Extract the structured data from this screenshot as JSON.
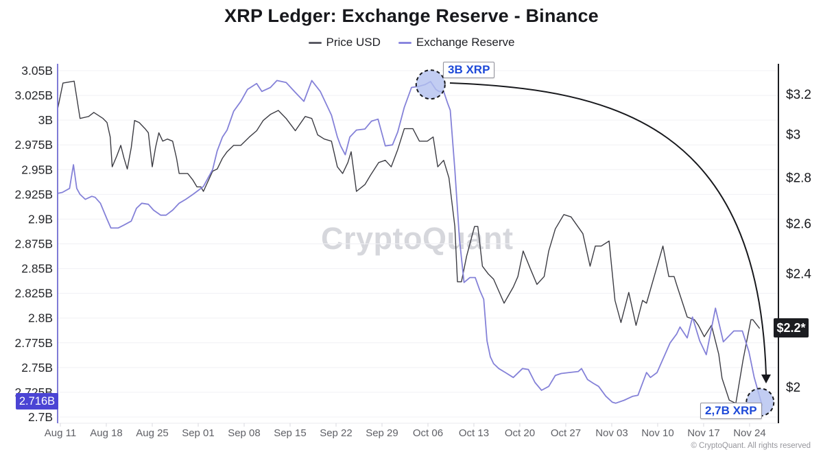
{
  "page": {
    "title": "XRP Ledger: Exchange Reserve - Binance",
    "watermark": "CryptoQuant",
    "copyright": "© CryptoQuant. All rights reserved"
  },
  "legend": [
    {
      "label": "Price USD",
      "color": "#5b5b64"
    },
    {
      "label": "Exchange Reserve",
      "color": "#8a86de"
    }
  ],
  "chart_data": {
    "type": "line",
    "title": "XRP Ledger: Exchange Reserve - Binance",
    "grid": "horizontal",
    "legend_position": "top",
    "x_axis": {
      "unit": "date (2025), day 0 = Aug 11",
      "ticks": [
        {
          "day": 0,
          "label": "Aug 11"
        },
        {
          "day": 7,
          "label": "Aug 18"
        },
        {
          "day": 14,
          "label": "Aug 25"
        },
        {
          "day": 21,
          "label": "Sep 01"
        },
        {
          "day": 28,
          "label": "Sep 08"
        },
        {
          "day": 35,
          "label": "Sep 15"
        },
        {
          "day": 42,
          "label": "Sep 22"
        },
        {
          "day": 49,
          "label": "Sep 29"
        },
        {
          "day": 56,
          "label": "Oct 06"
        },
        {
          "day": 63,
          "label": "Oct 13"
        },
        {
          "day": 70,
          "label": "Oct 20"
        },
        {
          "day": 77,
          "label": "Oct 27"
        },
        {
          "day": 84,
          "label": "Nov 03"
        },
        {
          "day": 91,
          "label": "Nov 10"
        },
        {
          "day": 98,
          "label": "Nov 17"
        },
        {
          "day": 105,
          "label": "Nov 24"
        }
      ]
    },
    "left_axis": {
      "name": "Exchange Reserve",
      "unit": "billion XRP",
      "scale": "linear",
      "range": [
        2.7,
        3.05
      ],
      "axis_color": "#7e7ad6",
      "ticks": [
        {
          "value": 3.05,
          "label": "3.05B"
        },
        {
          "value": 3.025,
          "label": "3.025B"
        },
        {
          "value": 3.0,
          "label": "3B"
        },
        {
          "value": 2.975,
          "label": "2.975B"
        },
        {
          "value": 2.95,
          "label": "2.95B"
        },
        {
          "value": 2.925,
          "label": "2.925B"
        },
        {
          "value": 2.9,
          "label": "2.9B"
        },
        {
          "value": 2.875,
          "label": "2.875B"
        },
        {
          "value": 2.85,
          "label": "2.85B"
        },
        {
          "value": 2.825,
          "label": "2.825B"
        },
        {
          "value": 2.8,
          "label": "2.8B"
        },
        {
          "value": 2.775,
          "label": "2.775B"
        },
        {
          "value": 2.75,
          "label": "2.75B"
        },
        {
          "value": 2.725,
          "label": "2.725B"
        },
        {
          "value": 2.7,
          "label": "2.7B"
        }
      ],
      "highlight": {
        "value": 2.716,
        "label": "2.716B",
        "color": "#4b44d4"
      }
    },
    "right_axis": {
      "name": "Price USD",
      "unit": "USD",
      "scale": "log",
      "axis_color": "#1a1b1f",
      "ticks": [
        {
          "value": 3.2,
          "label": "$3.2"
        },
        {
          "value": 3.0,
          "label": "$3"
        },
        {
          "value": 2.8,
          "label": "$2.8"
        },
        {
          "value": 2.6,
          "label": "$2.6"
        },
        {
          "value": 2.4,
          "label": "$2.4"
        },
        {
          "value": 2.0,
          "label": "$2"
        }
      ],
      "highlight": {
        "value": 2.2,
        "label": "$2.2*",
        "color": "#1b1c20"
      }
    },
    "series": [
      {
        "name": "Price USD",
        "axis": "right",
        "color": "#3b3b42",
        "width": 1.4,
        "points": [
          [
            -0.4,
            3.13
          ],
          [
            0.4,
            3.26
          ],
          [
            2.1,
            3.27
          ],
          [
            3.0,
            3.08
          ],
          [
            4.3,
            3.09
          ],
          [
            5.1,
            3.11
          ],
          [
            6.5,
            3.08
          ],
          [
            7.1,
            3.06
          ],
          [
            7.6,
            2.99
          ],
          [
            7.9,
            2.85
          ],
          [
            8.6,
            2.9
          ],
          [
            9.2,
            2.95
          ],
          [
            9.7,
            2.89
          ],
          [
            10.2,
            2.84
          ],
          [
            10.8,
            2.94
          ],
          [
            11.3,
            3.07
          ],
          [
            12.0,
            3.06
          ],
          [
            12.9,
            3.03
          ],
          [
            13.4,
            3.01
          ],
          [
            14.0,
            2.85
          ],
          [
            14.5,
            2.94
          ],
          [
            15.0,
            3.01
          ],
          [
            15.6,
            2.97
          ],
          [
            16.3,
            2.98
          ],
          [
            17.1,
            2.97
          ],
          [
            17.7,
            2.89
          ],
          [
            18.1,
            2.82
          ],
          [
            18.8,
            2.82
          ],
          [
            19.4,
            2.82
          ],
          [
            20.2,
            2.79
          ],
          [
            20.8,
            2.76
          ],
          [
            21.4,
            2.76
          ],
          [
            21.8,
            2.74
          ],
          [
            23.2,
            2.83
          ],
          [
            23.9,
            2.84
          ],
          [
            24.7,
            2.89
          ],
          [
            25.4,
            2.92
          ],
          [
            26.4,
            2.95
          ],
          [
            27.5,
            2.95
          ],
          [
            28.8,
            2.99
          ],
          [
            29.9,
            3.02
          ],
          [
            30.9,
            3.07
          ],
          [
            32.0,
            3.1
          ],
          [
            33.2,
            3.12
          ],
          [
            34.4,
            3.08
          ],
          [
            35.8,
            3.02
          ],
          [
            37.3,
            3.09
          ],
          [
            38.3,
            3.08
          ],
          [
            39.2,
            3.0
          ],
          [
            40.2,
            2.98
          ],
          [
            41.3,
            2.97
          ],
          [
            42.2,
            2.85
          ],
          [
            43.0,
            2.82
          ],
          [
            43.8,
            2.87
          ],
          [
            44.3,
            2.92
          ],
          [
            45.1,
            2.74
          ],
          [
            46.4,
            2.77
          ],
          [
            47.2,
            2.81
          ],
          [
            48.5,
            2.87
          ],
          [
            49.5,
            2.88
          ],
          [
            50.4,
            2.85
          ],
          [
            51.4,
            2.93
          ],
          [
            52.4,
            3.03
          ],
          [
            53.7,
            3.03
          ],
          [
            54.7,
            2.97
          ],
          [
            55.9,
            2.97
          ],
          [
            56.8,
            2.99
          ],
          [
            57.5,
            2.85
          ],
          [
            58.4,
            2.88
          ],
          [
            59.2,
            2.8
          ],
          [
            60.1,
            2.59
          ],
          [
            60.5,
            2.37
          ],
          [
            61.1,
            2.37
          ],
          [
            61.9,
            2.47
          ],
          [
            63.1,
            2.59
          ],
          [
            63.6,
            2.59
          ],
          [
            64.3,
            2.43
          ],
          [
            65.2,
            2.4
          ],
          [
            66.0,
            2.38
          ],
          [
            67.6,
            2.29
          ],
          [
            69.0,
            2.35
          ],
          [
            69.7,
            2.39
          ],
          [
            70.5,
            2.49
          ],
          [
            71.6,
            2.42
          ],
          [
            72.6,
            2.36
          ],
          [
            73.7,
            2.39
          ],
          [
            74.4,
            2.49
          ],
          [
            75.4,
            2.58
          ],
          [
            76.7,
            2.64
          ],
          [
            77.8,
            2.63
          ],
          [
            79.6,
            2.56
          ],
          [
            80.7,
            2.43
          ],
          [
            81.5,
            2.51
          ],
          [
            82.4,
            2.51
          ],
          [
            83.6,
            2.53
          ],
          [
            84.5,
            2.3
          ],
          [
            85.4,
            2.22
          ],
          [
            86.6,
            2.33
          ],
          [
            87.7,
            2.21
          ],
          [
            88.7,
            2.3
          ],
          [
            89.3,
            2.29
          ],
          [
            91.8,
            2.51
          ],
          [
            92.7,
            2.39
          ],
          [
            93.5,
            2.39
          ],
          [
            94.0,
            2.35
          ],
          [
            95.5,
            2.24
          ],
          [
            96.6,
            2.23
          ],
          [
            97.2,
            2.21
          ],
          [
            98.1,
            2.17
          ],
          [
            99.2,
            2.21
          ],
          [
            100.3,
            2.11
          ],
          [
            100.8,
            2.03
          ],
          [
            101.9,
            1.96
          ],
          [
            102.9,
            1.95
          ],
          [
            104.0,
            2.09
          ],
          [
            105.2,
            2.23
          ],
          [
            105.5,
            2.23
          ],
          [
            106.5,
            2.2
          ]
        ]
      },
      {
        "name": "Exchange Reserve",
        "axis": "left",
        "color": "#8481d8",
        "width": 1.8,
        "points": [
          [
            -0.4,
            2.926
          ],
          [
            0.3,
            2.927
          ],
          [
            1.4,
            2.931
          ],
          [
            2.0,
            2.955
          ],
          [
            2.5,
            2.931
          ],
          [
            3.0,
            2.925
          ],
          [
            3.8,
            2.92
          ],
          [
            4.8,
            2.923
          ],
          [
            5.3,
            2.922
          ],
          [
            6.1,
            2.916
          ],
          [
            6.6,
            2.908
          ],
          [
            7.1,
            2.9
          ],
          [
            7.7,
            2.891
          ],
          [
            8.8,
            2.891
          ],
          [
            9.7,
            2.894
          ],
          [
            10.8,
            2.898
          ],
          [
            11.6,
            2.911
          ],
          [
            12.4,
            2.916
          ],
          [
            13.4,
            2.915
          ],
          [
            14.2,
            2.909
          ],
          [
            15.3,
            2.904
          ],
          [
            16.1,
            2.904
          ],
          [
            17.1,
            2.909
          ],
          [
            18.1,
            2.916
          ],
          [
            19.1,
            2.92
          ],
          [
            20.2,
            2.925
          ],
          [
            21.0,
            2.929
          ],
          [
            21.8,
            2.933
          ],
          [
            23.2,
            2.95
          ],
          [
            23.9,
            2.969
          ],
          [
            24.7,
            2.983
          ],
          [
            25.4,
            2.99
          ],
          [
            26.4,
            3.009
          ],
          [
            27.5,
            3.019
          ],
          [
            28.5,
            3.031
          ],
          [
            29.9,
            3.037
          ],
          [
            30.7,
            3.029
          ],
          [
            32.0,
            3.033
          ],
          [
            33.0,
            3.04
          ],
          [
            34.4,
            3.038
          ],
          [
            35.8,
            3.028
          ],
          [
            37.1,
            3.019
          ],
          [
            38.3,
            3.04
          ],
          [
            39.6,
            3.029
          ],
          [
            41.3,
            3.005
          ],
          [
            42.2,
            2.983
          ],
          [
            42.7,
            2.974
          ],
          [
            43.4,
            2.965
          ],
          [
            44.1,
            2.983
          ],
          [
            45.1,
            2.99
          ],
          [
            46.4,
            2.991
          ],
          [
            47.4,
            2.999
          ],
          [
            48.4,
            3.001
          ],
          [
            49.5,
            2.974
          ],
          [
            50.6,
            2.975
          ],
          [
            51.4,
            2.988
          ],
          [
            52.4,
            3.013
          ],
          [
            53.5,
            3.033
          ],
          [
            54.5,
            3.034
          ],
          [
            55.6,
            3.036
          ],
          [
            56.4,
            3.039
          ],
          [
            57.2,
            3.031
          ],
          [
            57.7,
            3.029
          ],
          [
            58.4,
            3.029
          ],
          [
            59.0,
            3.017
          ],
          [
            59.4,
            3.01
          ],
          [
            60.1,
            2.95
          ],
          [
            60.8,
            2.88
          ],
          [
            61.5,
            2.836
          ],
          [
            62.4,
            2.841
          ],
          [
            63.2,
            2.841
          ],
          [
            63.9,
            2.828
          ],
          [
            64.5,
            2.819
          ],
          [
            65.0,
            2.777
          ],
          [
            65.5,
            2.761
          ],
          [
            66.0,
            2.754
          ],
          [
            66.8,
            2.749
          ],
          [
            67.8,
            2.745
          ],
          [
            69.0,
            2.74
          ],
          [
            70.4,
            2.749
          ],
          [
            71.3,
            2.748
          ],
          [
            72.3,
            2.735
          ],
          [
            73.3,
            2.727
          ],
          [
            74.4,
            2.731
          ],
          [
            75.4,
            2.742
          ],
          [
            76.3,
            2.744
          ],
          [
            77.5,
            2.745
          ],
          [
            78.9,
            2.746
          ],
          [
            79.4,
            2.749
          ],
          [
            80.3,
            2.738
          ],
          [
            81.2,
            2.734
          ],
          [
            82.0,
            2.731
          ],
          [
            83.1,
            2.721
          ],
          [
            84.1,
            2.715
          ],
          [
            84.6,
            2.714
          ],
          [
            85.9,
            2.717
          ],
          [
            87.2,
            2.721
          ],
          [
            88.0,
            2.722
          ],
          [
            89.3,
            2.745
          ],
          [
            89.9,
            2.74
          ],
          [
            90.9,
            2.745
          ],
          [
            92.9,
            2.775
          ],
          [
            93.9,
            2.784
          ],
          [
            94.4,
            2.791
          ],
          [
            95.5,
            2.78
          ],
          [
            96.3,
            2.801
          ],
          [
            97.4,
            2.777
          ],
          [
            98.4,
            2.763
          ],
          [
            99.8,
            2.81
          ],
          [
            101.0,
            2.776
          ],
          [
            102.6,
            2.787
          ],
          [
            103.9,
            2.787
          ],
          [
            104.9,
            2.766
          ],
          [
            105.7,
            2.74
          ],
          [
            106.6,
            2.719
          ],
          [
            106.9,
            2.712
          ]
        ]
      }
    ],
    "callouts": [
      {
        "label": "3B XRP",
        "series": "Exchange Reserve",
        "day": 56.4,
        "value": 3.036,
        "r": 21
      },
      {
        "label": "2,7B XRP",
        "series": "Exchange Reserve",
        "day": 106.6,
        "value": 2.715,
        "r": 20
      }
    ],
    "arrow": {
      "description": "curved arrow from 3B XRP peak down to 2,7B XRP end point",
      "color": "#17181c"
    }
  }
}
